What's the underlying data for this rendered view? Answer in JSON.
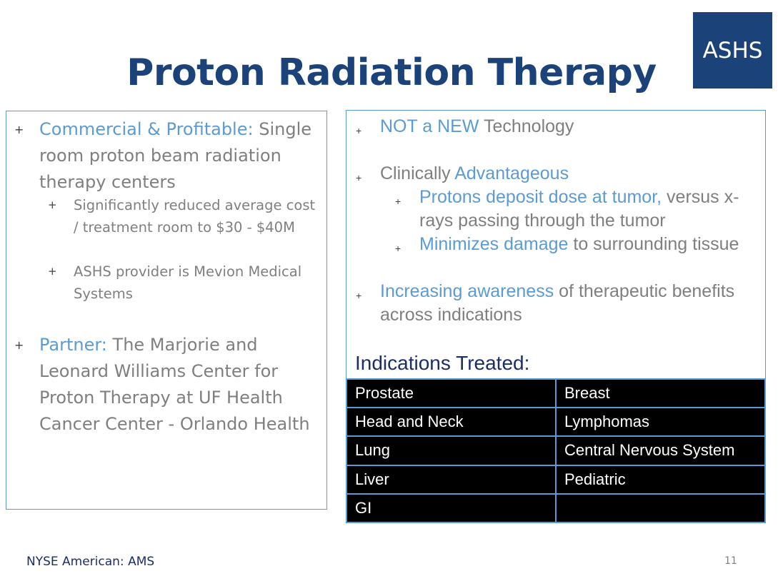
{
  "logo": {
    "text": "ASHS"
  },
  "title": "Proton Radiation Therapy",
  "left": {
    "bullet": "+",
    "item1": {
      "accent": "Commercial & Profitable:",
      "text": "Single room proton beam radiation therapy centers"
    },
    "sub1": "Significantly reduced average cost / treatment room to $30 - $40M",
    "sub2": "ASHS provider is Mevion Medical Systems",
    "item2": {
      "accent": "Partner:",
      "text": "The Marjorie and Leonard Williams Center for Proton Therapy at UF Health Cancer Center - Orlando Health"
    }
  },
  "right": {
    "bullet": "+",
    "item1": {
      "accent": "NOT a NEW",
      "text": "Technology"
    },
    "item2": {
      "text": "Clinically",
      "accent": "Advantageous"
    },
    "sub1": {
      "accent": "Protons deposit dose at tumor,",
      "text": "versus x-rays passing through the tumor"
    },
    "sub2": {
      "accent": "Minimizes damage",
      "text": "to surrounding tissue"
    },
    "item3": {
      "accent": "Increasing awareness",
      "text": "of therapeutic benefits across indications"
    }
  },
  "indications": {
    "label": "Indications Treated:",
    "rows": [
      [
        "Prostate",
        "Breast"
      ],
      [
        "Head and Neck",
        "Lymphomas"
      ],
      [
        "Lung",
        "Central Nervous System"
      ],
      [
        "Liver",
        "Pediatric"
      ],
      [
        "GI",
        ""
      ]
    ]
  },
  "footer": {
    "ticker": "NYSE American: AMS",
    "page": "11"
  },
  "colors": {
    "navy": "#1b4279",
    "accent": "#5b9bd5",
    "gray": "#7f7f7f"
  }
}
